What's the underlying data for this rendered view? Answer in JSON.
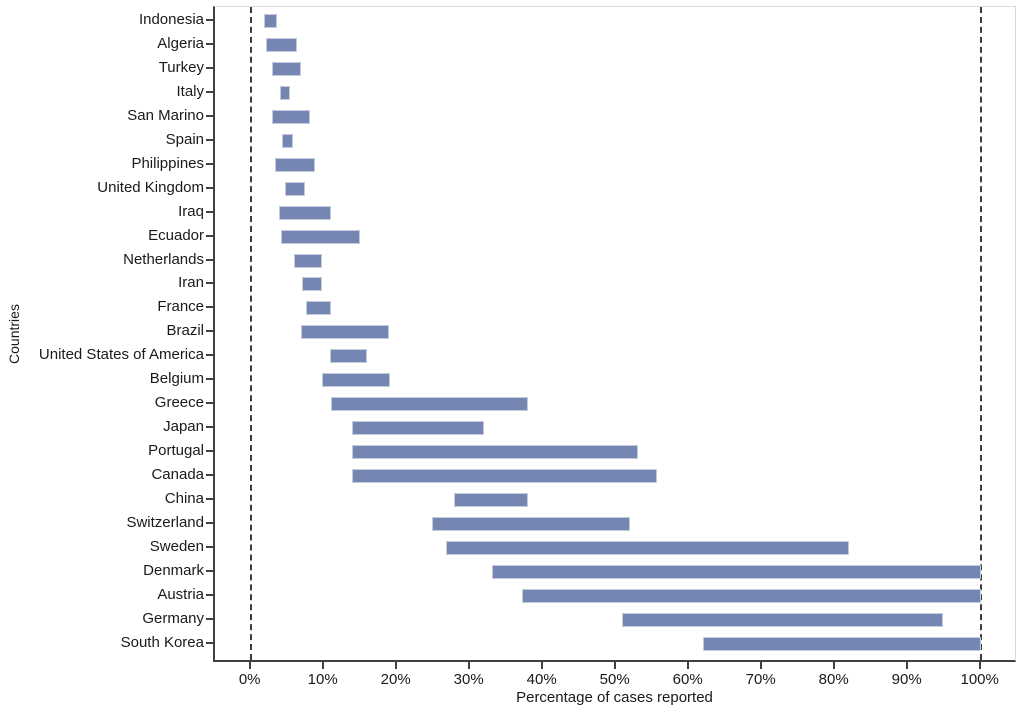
{
  "chart_data": {
    "type": "bar",
    "subtype": "horizontal-range-bars",
    "title": "",
    "xlabel": "Percentage of cases reported",
    "ylabel": "Countries",
    "xlim": [
      0,
      100
    ],
    "x_ticks": [
      "0%",
      "10%",
      "20%",
      "30%",
      "40%",
      "50%",
      "60%",
      "70%",
      "80%",
      "90%",
      "100%"
    ],
    "x_tick_values": [
      0,
      10,
      20,
      30,
      40,
      50,
      60,
      70,
      80,
      90,
      100
    ],
    "reference_lines_percent": [
      0,
      100
    ],
    "grid": "off",
    "legend": "none",
    "bar_color": "#7586b2",
    "bar_border_color": "#c3cbdd",
    "axis_color": "#404040",
    "countries": [
      {
        "name": "Indonesia",
        "low": 1.8,
        "high": 3.6
      },
      {
        "name": "Algeria",
        "low": 2.1,
        "high": 6.3
      },
      {
        "name": "Turkey",
        "low": 2.9,
        "high": 6.9
      },
      {
        "name": "Italy",
        "low": 4.0,
        "high": 5.4
      },
      {
        "name": "San Marino",
        "low": 2.9,
        "high": 8.1
      },
      {
        "name": "Spain",
        "low": 4.3,
        "high": 5.8
      },
      {
        "name": "Philippines",
        "low": 3.3,
        "high": 8.8
      },
      {
        "name": "United Kingdom",
        "low": 4.7,
        "high": 7.4
      },
      {
        "name": "Iraq",
        "low": 3.9,
        "high": 11.0
      },
      {
        "name": "Ecuador",
        "low": 4.1,
        "high": 15.0
      },
      {
        "name": "Netherlands",
        "low": 5.9,
        "high": 9.8
      },
      {
        "name": "Iran",
        "low": 7.0,
        "high": 9.8
      },
      {
        "name": "France",
        "low": 7.6,
        "high": 11.0
      },
      {
        "name": "Brazil",
        "low": 6.9,
        "high": 18.9
      },
      {
        "name": "United States of America",
        "low": 10.9,
        "high": 15.9
      },
      {
        "name": "Belgium",
        "low": 9.8,
        "high": 19.1
      },
      {
        "name": "Greece",
        "low": 11.0,
        "high": 38.0
      },
      {
        "name": "Japan",
        "low": 13.9,
        "high": 31.9
      },
      {
        "name": "Portugal",
        "low": 13.9,
        "high": 53.0
      },
      {
        "name": "Canada",
        "low": 13.9,
        "high": 55.7
      },
      {
        "name": "China",
        "low": 27.8,
        "high": 38.0
      },
      {
        "name": "Switzerland",
        "low": 24.9,
        "high": 52.0
      },
      {
        "name": "Sweden",
        "low": 26.8,
        "high": 81.9
      },
      {
        "name": "Denmark",
        "low": 33.1,
        "high": 100
      },
      {
        "name": "Austria",
        "low": 37.1,
        "high": 100
      },
      {
        "name": "Germany",
        "low": 50.8,
        "high": 94.9
      },
      {
        "name": "South Korea",
        "low": 61.9,
        "high": 100
      }
    ]
  }
}
